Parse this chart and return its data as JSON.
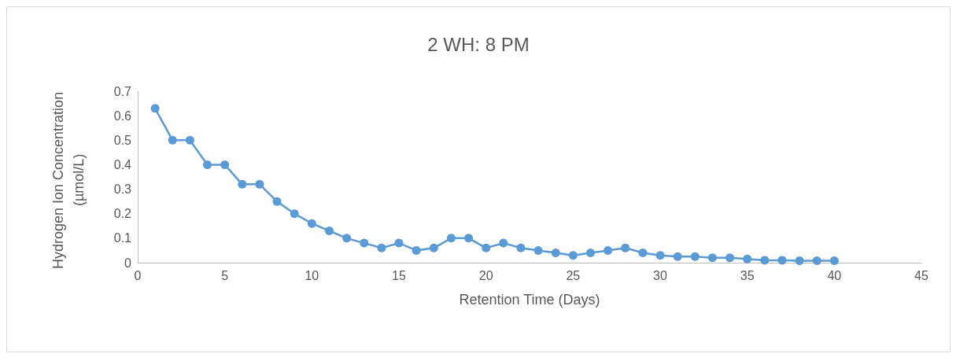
{
  "chart_data": {
    "type": "line",
    "title": "2 WH: 8 PM",
    "xlabel": "Retention Time (Days)",
    "ylabel": "Hydrogen Ion Concentration\n(µmol/L)",
    "x": [
      1,
      2,
      3,
      4,
      5,
      6,
      7,
      8,
      9,
      10,
      11,
      12,
      13,
      14,
      15,
      16,
      17,
      18,
      19,
      20,
      21,
      22,
      23,
      24,
      25,
      26,
      27,
      28,
      29,
      30,
      31,
      32,
      33,
      34,
      35,
      36,
      37,
      38,
      39,
      40
    ],
    "series": [
      {
        "color": "#5b9bd5",
        "values": [
          0.63,
          0.5,
          0.5,
          0.4,
          0.4,
          0.32,
          0.32,
          0.25,
          0.2,
          0.16,
          0.13,
          0.1,
          0.08,
          0.06,
          0.08,
          0.05,
          0.06,
          0.1,
          0.1,
          0.06,
          0.08,
          0.06,
          0.05,
          0.04,
          0.03,
          0.04,
          0.05,
          0.06,
          0.04,
          0.03,
          0.025,
          0.025,
          0.02,
          0.02,
          0.015,
          0.01,
          0.01,
          0.008,
          0.008,
          0.008
        ]
      }
    ],
    "xlim": [
      0,
      45
    ],
    "xticks": [
      0,
      5,
      10,
      15,
      20,
      25,
      30,
      35,
      40,
      45
    ],
    "ylim": [
      0,
      0.7
    ],
    "yticks": [
      0,
      0.1,
      0.2,
      0.3,
      0.4,
      0.5,
      0.6,
      0.7
    ],
    "grid": false,
    "marker": "circle",
    "line_style": "solid"
  }
}
